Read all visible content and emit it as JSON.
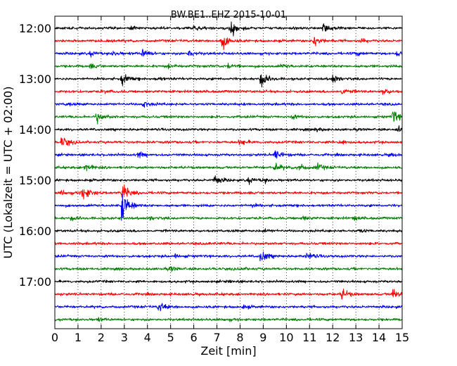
{
  "chart_data": {
    "type": "line",
    "title": "BW.BE1..EHZ 2015-10-01",
    "xlabel": "Zeit  [min]",
    "ylabel": "UTC (Lokalzeit = UTC + 02:00)",
    "xlim": [
      0,
      15
    ],
    "x_ticks": [
      "0",
      "1",
      "2",
      "3",
      "4",
      "5",
      "6",
      "7",
      "8",
      "9",
      "10",
      "11",
      "12",
      "13",
      "14",
      "15"
    ],
    "y_ticks": [
      "12:00",
      "13:00",
      "14:00",
      "15:00",
      "16:00",
      "17:00"
    ],
    "grid": "vertical dotted",
    "row_minutes": 15,
    "series": [
      {
        "row": 0,
        "start": "12:00",
        "color": "#000000",
        "events": [
          [
            7.6,
            1.0
          ],
          [
            11.6,
            0.4
          ],
          [
            6.0,
            0.25
          ],
          [
            3.3,
            0.2
          ]
        ]
      },
      {
        "row": 1,
        "start": "12:15",
        "color": "#ff0000",
        "events": [
          [
            7.2,
            1.0
          ],
          [
            11.2,
            0.6
          ],
          [
            13.2,
            0.2
          ]
        ]
      },
      {
        "row": 2,
        "start": "12:30",
        "color": "#0000ff",
        "events": [
          [
            3.8,
            0.5
          ],
          [
            5.8,
            0.45
          ],
          [
            1.5,
            0.25
          ],
          [
            2.5,
            0.25
          ],
          [
            14.8,
            0.3
          ],
          [
            13.0,
            0.2
          ]
        ]
      },
      {
        "row": 3,
        "start": "12:45",
        "color": "#008000",
        "events": [
          [
            7.5,
            0.3
          ],
          [
            1.5,
            0.2
          ],
          [
            4.9,
            0.2
          ],
          [
            9.8,
            0.15
          ]
        ]
      },
      {
        "row": 4,
        "start": "13:00",
        "color": "#000000",
        "events": [
          [
            8.9,
            0.9
          ],
          [
            2.9,
            0.6
          ],
          [
            12.0,
            0.5
          ],
          [
            4.4,
            0.2
          ]
        ]
      },
      {
        "row": 5,
        "start": "13:15",
        "color": "#ff0000",
        "events": [
          [
            12.4,
            0.35
          ],
          [
            14.2,
            0.4
          ],
          [
            2.1,
            0.15
          ]
        ]
      },
      {
        "row": 6,
        "start": "13:30",
        "color": "#0000ff",
        "events": [
          [
            3.8,
            0.35
          ],
          [
            0.5,
            0.15
          ]
        ]
      },
      {
        "row": 7,
        "start": "13:45",
        "color": "#008000",
        "events": [
          [
            1.8,
            0.6
          ],
          [
            14.6,
            0.7
          ],
          [
            10.2,
            0.2
          ]
        ]
      },
      {
        "row": 8,
        "start": "14:00",
        "color": "#000000",
        "events": [
          [
            14.8,
            0.4
          ],
          [
            11.2,
            0.2
          ]
        ]
      },
      {
        "row": 9,
        "start": "14:15",
        "color": "#ff0000",
        "events": [
          [
            0.3,
            0.6
          ],
          [
            8.0,
            0.3
          ],
          [
            12.3,
            0.25
          ]
        ]
      },
      {
        "row": 10,
        "start": "14:30",
        "color": "#0000ff",
        "events": [
          [
            9.5,
            0.6
          ],
          [
            3.6,
            0.3
          ],
          [
            14.5,
            0.15
          ]
        ]
      },
      {
        "row": 11,
        "start": "14:45",
        "color": "#008000",
        "events": [
          [
            1.3,
            0.55
          ],
          [
            9.5,
            0.45
          ],
          [
            10.5,
            0.4
          ],
          [
            11.3,
            0.4
          ]
        ]
      },
      {
        "row": 12,
        "start": "15:00",
        "color": "#000000",
        "events": [
          [
            6.9,
            0.55
          ],
          [
            8.3,
            0.4
          ],
          [
            9.0,
            0.2
          ]
        ]
      },
      {
        "row": 13,
        "start": "15:15",
        "color": "#ff0000",
        "events": [
          [
            1.2,
            0.9
          ],
          [
            2.9,
            1.0
          ],
          [
            0.3,
            0.25
          ]
        ]
      },
      {
        "row": 14,
        "start": "15:30",
        "color": "#0000ff",
        "events": [
          [
            2.9,
            1.8
          ],
          [
            8.5,
            0.15
          ]
        ]
      },
      {
        "row": 15,
        "start": "15:45",
        "color": "#008000",
        "events": [
          [
            0.7,
            0.2
          ],
          [
            4.1,
            0.2
          ],
          [
            10.7,
            0.2
          ],
          [
            12.9,
            0.15
          ]
        ]
      },
      {
        "row": 16,
        "start": "16:00",
        "color": "#000000",
        "events": [
          [
            13.1,
            0.2
          ],
          [
            9.0,
            0.15
          ]
        ]
      },
      {
        "row": 17,
        "start": "16:15",
        "color": "#ff0000",
        "events": [
          [
            6.7,
            0.1
          ]
        ]
      },
      {
        "row": 18,
        "start": "16:30",
        "color": "#0000ff",
        "events": [
          [
            8.9,
            0.7
          ],
          [
            10.9,
            0.4
          ],
          [
            5.2,
            0.2
          ]
        ]
      },
      {
        "row": 19,
        "start": "16:45",
        "color": "#008000",
        "events": [
          [
            5.0,
            0.2
          ],
          [
            8.0,
            0.1
          ]
        ]
      },
      {
        "row": 20,
        "start": "17:00",
        "color": "#000000",
        "events": [
          [
            7.5,
            0.1
          ]
        ]
      },
      {
        "row": 21,
        "start": "17:15",
        "color": "#ff0000",
        "events": [
          [
            12.4,
            0.6
          ],
          [
            14.6,
            0.55
          ]
        ]
      },
      {
        "row": 22,
        "start": "17:30",
        "color": "#0000ff",
        "events": [
          [
            4.5,
            0.6
          ],
          [
            8.1,
            0.15
          ]
        ]
      },
      {
        "row": 23,
        "start": "17:45",
        "color": "#008000",
        "events": [
          [
            1.8,
            0.15
          ],
          [
            7.3,
            0.1
          ]
        ]
      }
    ]
  }
}
